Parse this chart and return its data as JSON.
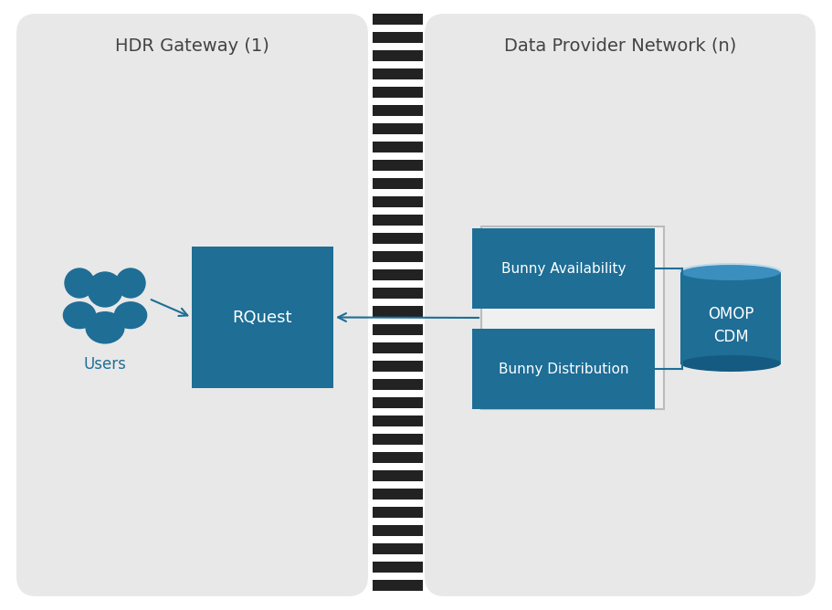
{
  "bg_color": "#ffffff",
  "panel_bg": "#e8e8e8",
  "box_color": "#1e6e96",
  "arrow_color": "#1e6e96",
  "text_white": "#ffffff",
  "text_blue": "#1e6e96",
  "text_dark": "#444444",
  "title_left": "HDR Gateway (1)",
  "title_right": "Data Provider Network (n)",
  "rquest_label": "RQuest",
  "avail_label": "Bunny Availability",
  "dist_label": "Bunny Distribution",
  "omop_label": "OMOP\nCDM",
  "users_label": "Users"
}
